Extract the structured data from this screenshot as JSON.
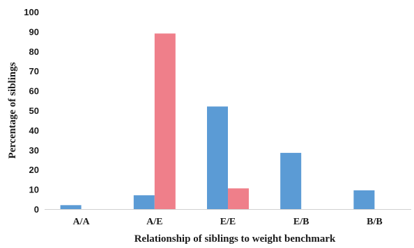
{
  "chart_data": {
    "type": "bar",
    "categories": [
      "A/A",
      "A/E",
      "E/E",
      "E/B",
      "B/B"
    ],
    "series": [
      {
        "values": [
          2,
          7,
          52,
          28.5,
          9.5
        ],
        "color": "#5b9bd5"
      },
      {
        "values": [
          0,
          89,
          10.5,
          0,
          0
        ],
        "color": "#ef7f8a"
      }
    ],
    "xlabel": "Relationship of siblings to weight benchmark",
    "ylabel": "Percentage of siblings",
    "ylim": [
      0,
      100
    ],
    "yticks": [
      0,
      10,
      20,
      30,
      40,
      50,
      60,
      70,
      80,
      90,
      100
    ],
    "grid": false,
    "legend": "none"
  }
}
